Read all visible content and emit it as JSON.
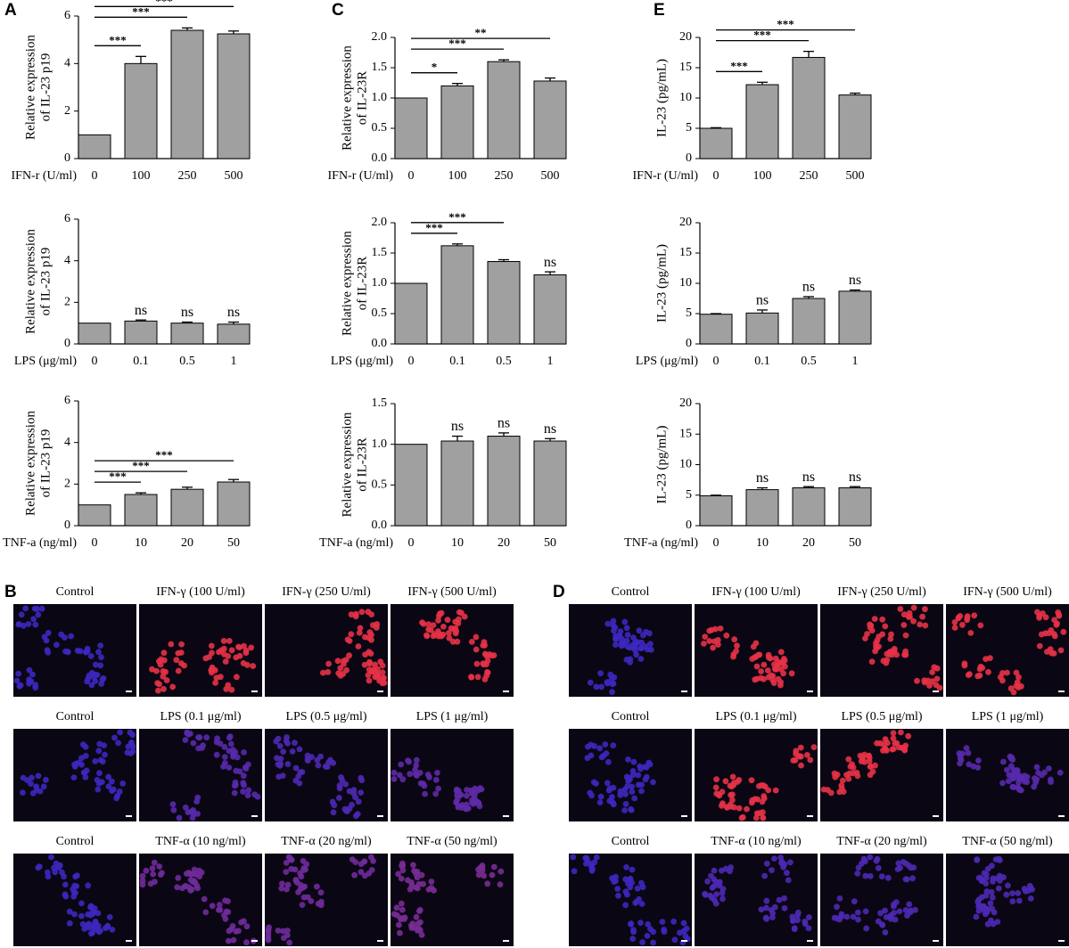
{
  "chart_data": [
    {
      "type": "bar",
      "panel_label": "A",
      "ylabel": [
        "Relative expression",
        "of IL-23 p19"
      ],
      "xlabel": "IFN-r (U/ml)",
      "categories": [
        "0",
        "100",
        "250",
        "500"
      ],
      "values": [
        1,
        4.0,
        5.4,
        5.25
      ],
      "errors": [
        0,
        0.3,
        0.1,
        0.12
      ],
      "significance": [
        null,
        "***",
        "***",
        "***"
      ],
      "color": "#a0a0a0",
      "ylim": [
        0,
        6
      ],
      "yticks": [
        0,
        2,
        4,
        6
      ]
    },
    {
      "type": "bar",
      "ylabel": [
        "Relative expression",
        "of IL-23 p19"
      ],
      "xlabel": "LPS (μg/ml)",
      "categories": [
        "0",
        "0.1",
        "0.5",
        "1"
      ],
      "values": [
        1,
        1.1,
        1.0,
        0.95
      ],
      "errors": [
        0,
        0.05,
        0.05,
        0.1
      ],
      "significance": [
        null,
        "ns",
        "ns",
        "ns"
      ],
      "color": "#a0a0a0",
      "ylim": [
        0,
        6
      ],
      "yticks": [
        0,
        2,
        4,
        6
      ]
    },
    {
      "type": "bar",
      "ylabel": [
        "Relative expression",
        "of IL-23 p19"
      ],
      "xlabel": "TNF-a (ng/ml)",
      "categories": [
        "0",
        "10",
        "20",
        "50"
      ],
      "values": [
        1,
        1.5,
        1.75,
        2.1
      ],
      "errors": [
        0,
        0.08,
        0.1,
        0.12
      ],
      "significance": [
        null,
        "***",
        "***",
        "***"
      ],
      "color": "#a0a0a0",
      "ylim": [
        0,
        6
      ],
      "yticks": [
        0,
        2,
        4,
        6
      ]
    },
    {
      "type": "bar",
      "panel_label": "C",
      "ylabel": [
        "Relative expression",
        "of IL-23R"
      ],
      "xlabel": "IFN-r (U/ml)",
      "categories": [
        "0",
        "100",
        "250",
        "500"
      ],
      "values": [
        1.0,
        1.2,
        1.6,
        1.28
      ],
      "errors": [
        0,
        0.04,
        0.03,
        0.05
      ],
      "significance": [
        null,
        "*",
        "***",
        "**"
      ],
      "color": "#a0a0a0",
      "ylim": [
        0,
        2
      ],
      "yticks": [
        {
          "value": 0,
          "label": "0.0"
        },
        0.5,
        {
          "value": 1,
          "label": "1.0"
        },
        1.5,
        {
          "value": 2,
          "label": "2.0"
        }
      ]
    },
    {
      "type": "bar",
      "ylabel": [
        "Relative expression",
        "of IL-23R"
      ],
      "xlabel": "LPS (μg/ml)",
      "categories": [
        "0",
        "0.1",
        "0.5",
        "1"
      ],
      "values": [
        1.0,
        1.62,
        1.36,
        1.14
      ],
      "errors": [
        0,
        0.03,
        0.03,
        0.05
      ],
      "significance": [
        null,
        "***",
        "***",
        "ns"
      ],
      "color": "#a0a0a0",
      "ylim": [
        0,
        2
      ],
      "yticks": [
        {
          "value": 0,
          "label": "0.0"
        },
        0.5,
        {
          "value": 1,
          "label": "1.0"
        },
        1.5,
        {
          "value": 2,
          "label": "2.0"
        }
      ]
    },
    {
      "type": "bar",
      "ylabel": [
        "Relative expression",
        "of IL-23R"
      ],
      "xlabel": "TNF-a (ng/ml)",
      "categories": [
        "0",
        "10",
        "20",
        "50"
      ],
      "values": [
        1.0,
        1.04,
        1.1,
        1.04
      ],
      "errors": [
        0,
        0.06,
        0.04,
        0.03
      ],
      "significance": [
        null,
        "ns",
        "ns",
        "ns"
      ],
      "color": "#a0a0a0",
      "ylim": [
        0,
        1.5
      ],
      "yticks": [
        {
          "value": 0,
          "label": "0.0"
        },
        0.5,
        {
          "value": 1,
          "label": "1.0"
        },
        1.5
      ]
    },
    {
      "type": "bar",
      "panel_label": "E",
      "ylabel": [
        "IL-23 (pg/mL)"
      ],
      "xlabel": "IFN-r (U/ml)",
      "categories": [
        "0",
        "100",
        "250",
        "500"
      ],
      "values": [
        5.0,
        12.2,
        16.7,
        10.5
      ],
      "errors": [
        0.1,
        0.4,
        1.0,
        0.3
      ],
      "significance": [
        null,
        "***",
        "***",
        "***"
      ],
      "color": "#a0a0a0",
      "ylim": [
        0,
        20
      ],
      "yticks": [
        0,
        5,
        10,
        15,
        20
      ]
    },
    {
      "type": "bar",
      "ylabel": [
        "IL-23 (pg/mL)"
      ],
      "xlabel": "LPS (μg/ml)",
      "categories": [
        "0",
        "0.1",
        "0.5",
        "1"
      ],
      "values": [
        4.9,
        5.1,
        7.5,
        8.7
      ],
      "errors": [
        0.1,
        0.5,
        0.3,
        0.2
      ],
      "significance": [
        null,
        "ns",
        "ns",
        "ns"
      ],
      "color": "#a0a0a0",
      "ylim": [
        0,
        20
      ],
      "yticks": [
        0,
        5,
        10,
        15,
        20
      ]
    },
    {
      "type": "bar",
      "ylabel": [
        "IL-23 (pg/mL)"
      ],
      "xlabel": "TNF-a (ng/ml)",
      "categories": [
        "0",
        "10",
        "20",
        "50"
      ],
      "values": [
        4.9,
        5.9,
        6.2,
        6.2
      ],
      "errors": [
        0.1,
        0.3,
        0.2,
        0.2
      ],
      "significance": [
        null,
        "ns",
        "ns",
        "ns"
      ],
      "color": "#a0a0a0",
      "ylim": [
        0,
        20
      ],
      "yticks": [
        0,
        5,
        10,
        15,
        20
      ]
    }
  ],
  "image_panels": [
    {
      "label": "B",
      "rows": [
        [
          "Control",
          "IFN-γ (100 U/ml)",
          "IFN-γ (250 U/ml)",
          "IFN-γ (500 U/ml)"
        ],
        [
          "Control",
          "LPS (0.1 μg/ml)",
          "LPS (0.5 μg/ml)",
          "LPS (1 μg/ml)"
        ],
        [
          "Control",
          "TNF-α (10 ng/ml)",
          "TNF-α (20 ng/ml)",
          "TNF-α (50 ng/ml)"
        ]
      ]
    },
    {
      "label": "D",
      "rows": [
        [
          "Control",
          "IFN-γ (100 U/ml)",
          "IFN-γ (250 U/ml)",
          "IFN-γ (500 U/ml)"
        ],
        [
          "Control",
          "LPS (0.1 μg/ml)",
          "LPS (0.5 μg/ml)",
          "LPS (1 μg/ml)"
        ],
        [
          "Control",
          "TNF-α (10 ng/ml)",
          "TNF-α (20 ng/ml)",
          "TNF-α (50 ng/ml)"
        ]
      ]
    }
  ]
}
